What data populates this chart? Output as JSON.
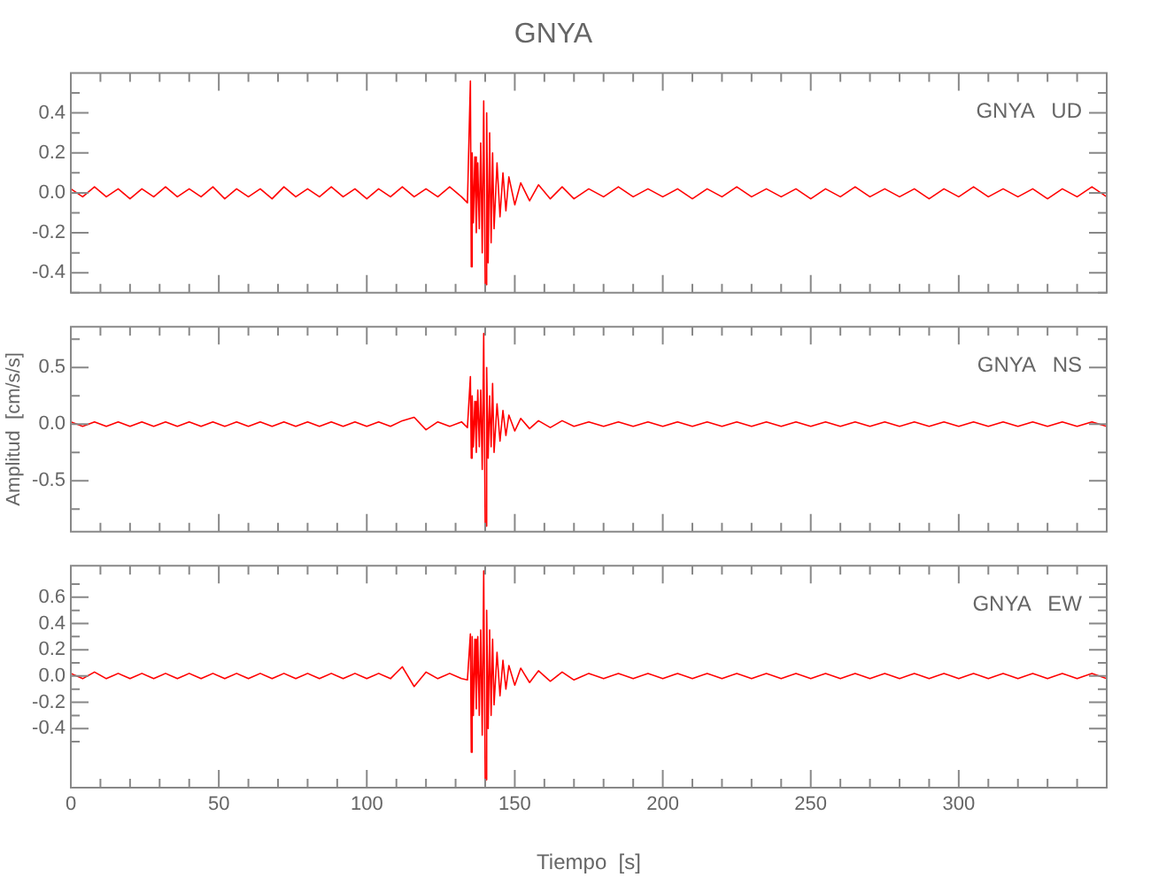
{
  "chart_data": [
    {
      "type": "line",
      "title": "GNYA",
      "tick_labels": "y",
      "marker": "none",
      "xlim": [
        0,
        350
      ],
      "xticks": [
        0,
        {
          "value": 10,
          "label": null
        },
        {
          "value": 20,
          "label": null
        },
        {
          "value": 30,
          "label": null
        },
        {
          "value": 40,
          "label": null
        },
        50,
        {
          "value": 60,
          "label": null
        },
        {
          "value": 70,
          "label": null
        },
        {
          "value": 80,
          "label": null
        },
        {
          "value": 90,
          "label": null
        },
        100,
        {
          "value": 110,
          "label": null
        },
        {
          "value": 120,
          "label": null
        },
        {
          "value": 130,
          "label": null
        },
        {
          "value": 140,
          "label": null
        },
        150,
        {
          "value": 160,
          "label": null
        },
        {
          "value": 170,
          "label": null
        },
        {
          "value": 180,
          "label": null
        },
        {
          "value": 190,
          "label": null
        },
        200,
        {
          "value": 210,
          "label": null
        },
        {
          "value": 220,
          "label": null
        },
        {
          "value": 230,
          "label": null
        },
        {
          "value": 240,
          "label": null
        },
        250,
        {
          "value": 260,
          "label": null
        },
        {
          "value": 270,
          "label": null
        },
        {
          "value": 280,
          "label": null
        },
        {
          "value": 290,
          "label": null
        },
        300,
        {
          "value": 310,
          "label": null
        },
        {
          "value": 320,
          "label": null
        },
        {
          "value": 330,
          "label": null
        },
        {
          "value": 340,
          "label": null
        },
        {
          "value": 350,
          "label": null
        }
      ],
      "ylim": [
        -0.5,
        0.6
      ],
      "yticks": [
        {
          "value": -0.5,
          "label": null
        },
        {
          "value": -0.4,
          "label": "-0.4"
        },
        {
          "value": -0.3,
          "label": null
        },
        {
          "value": -0.2,
          "label": "-0.2"
        },
        {
          "value": -0.1,
          "label": null
        },
        {
          "value": 0,
          "label": "0.0"
        },
        {
          "value": 0.1,
          "label": null
        },
        {
          "value": 0.2,
          "label": "0.2"
        },
        {
          "value": 0.3,
          "label": null
        },
        {
          "value": 0.4,
          "label": "0.4"
        },
        {
          "value": 0.5,
          "label": null
        }
      ],
      "x": [
        0,
        4,
        8,
        12,
        16,
        20,
        24,
        28,
        32,
        36,
        40,
        44,
        48,
        52,
        56,
        60,
        64,
        68,
        72,
        76,
        80,
        84,
        88,
        92,
        96,
        100,
        104,
        108,
        112,
        116,
        120,
        124,
        128,
        132,
        134,
        135,
        135.3,
        135.6,
        136,
        136.5,
        137,
        137.5,
        138,
        138.5,
        139,
        139.5,
        140,
        140.5,
        141,
        141.5,
        142,
        142.5,
        143,
        144,
        145,
        146,
        147,
        148,
        150,
        152,
        155,
        158,
        162,
        166,
        170,
        175,
        180,
        185,
        190,
        195,
        200,
        205,
        210,
        215,
        220,
        225,
        230,
        235,
        240,
        245,
        250,
        255,
        260,
        265,
        270,
        275,
        280,
        285,
        290,
        295,
        300,
        305,
        310,
        315,
        320,
        325,
        330,
        335,
        340,
        345,
        350
      ],
      "series": [
        {
          "name": "GNYA   UD",
          "color": "#ff0000",
          "values": [
            0.02,
            -0.02,
            0.03,
            -0.02,
            0.02,
            -0.03,
            0.02,
            -0.02,
            0.03,
            -0.02,
            0.02,
            -0.02,
            0.03,
            -0.03,
            0.02,
            -0.02,
            0.02,
            -0.03,
            0.03,
            -0.02,
            0.02,
            -0.02,
            0.03,
            -0.02,
            0.02,
            -0.03,
            0.02,
            -0.02,
            0.03,
            -0.02,
            0.02,
            -0.02,
            0.03,
            -0.02,
            -0.05,
            0.56,
            -0.37,
            0.2,
            -0.15,
            0.18,
            -0.2,
            0.15,
            -0.18,
            0.25,
            -0.3,
            0.46,
            -0.46,
            0.4,
            -0.35,
            0.3,
            -0.25,
            0.2,
            -0.18,
            0.15,
            -0.12,
            0.1,
            -0.09,
            0.08,
            -0.06,
            0.05,
            -0.04,
            0.04,
            -0.03,
            0.03,
            -0.03,
            0.02,
            -0.02,
            0.03,
            -0.02,
            0.02,
            -0.02,
            0.02,
            -0.03,
            0.02,
            -0.02,
            0.03,
            -0.02,
            0.02,
            -0.02,
            0.02,
            -0.03,
            0.02,
            -0.02,
            0.03,
            -0.02,
            0.02,
            -0.02,
            0.02,
            -0.03,
            0.02,
            -0.02,
            0.03,
            -0.02,
            0.02,
            -0.02,
            0.02,
            -0.03,
            0.02,
            -0.02,
            0.03,
            -0.02
          ]
        }
      ]
    },
    {
      "type": "line",
      "ylabel": "Amplitud  [cm/s/s]",
      "tick_labels": "y",
      "marker": "none",
      "xlim": [
        0,
        350
      ],
      "xticks": [
        0,
        {
          "value": 10,
          "label": null
        },
        {
          "value": 20,
          "label": null
        },
        {
          "value": 30,
          "label": null
        },
        {
          "value": 40,
          "label": null
        },
        50,
        {
          "value": 60,
          "label": null
        },
        {
          "value": 70,
          "label": null
        },
        {
          "value": 80,
          "label": null
        },
        {
          "value": 90,
          "label": null
        },
        100,
        {
          "value": 110,
          "label": null
        },
        {
          "value": 120,
          "label": null
        },
        {
          "value": 130,
          "label": null
        },
        {
          "value": 140,
          "label": null
        },
        150,
        {
          "value": 160,
          "label": null
        },
        {
          "value": 170,
          "label": null
        },
        {
          "value": 180,
          "label": null
        },
        {
          "value": 190,
          "label": null
        },
        200,
        {
          "value": 210,
          "label": null
        },
        {
          "value": 220,
          "label": null
        },
        {
          "value": 230,
          "label": null
        },
        {
          "value": 240,
          "label": null
        },
        250,
        {
          "value": 260,
          "label": null
        },
        {
          "value": 270,
          "label": null
        },
        {
          "value": 280,
          "label": null
        },
        {
          "value": 290,
          "label": null
        },
        300,
        {
          "value": 310,
          "label": null
        },
        {
          "value": 320,
          "label": null
        },
        {
          "value": 330,
          "label": null
        },
        {
          "value": 340,
          "label": null
        },
        {
          "value": 350,
          "label": null
        }
      ],
      "ylim": [
        -0.95,
        0.86
      ],
      "yticks": [
        {
          "value": -0.75,
          "label": null
        },
        {
          "value": -0.5,
          "label": "-0.5"
        },
        {
          "value": -0.25,
          "label": null
        },
        {
          "value": 0,
          "label": "0.0"
        },
        {
          "value": 0.25,
          "label": null
        },
        {
          "value": 0.5,
          "label": "0.5"
        },
        {
          "value": 0.75,
          "label": null
        }
      ],
      "x": [
        0,
        4,
        8,
        12,
        16,
        20,
        24,
        28,
        32,
        36,
        40,
        44,
        48,
        52,
        56,
        60,
        64,
        68,
        72,
        76,
        80,
        84,
        88,
        92,
        96,
        100,
        104,
        108,
        112,
        116,
        120,
        124,
        128,
        132,
        134,
        135,
        135.3,
        135.6,
        136,
        136.5,
        137,
        137.5,
        138,
        138.5,
        139,
        139.5,
        140,
        140.5,
        141,
        141.5,
        142,
        142.5,
        143,
        144,
        145,
        146,
        147,
        148,
        150,
        152,
        155,
        158,
        162,
        166,
        170,
        175,
        180,
        185,
        190,
        195,
        200,
        205,
        210,
        215,
        220,
        225,
        230,
        235,
        240,
        245,
        250,
        255,
        260,
        265,
        270,
        275,
        280,
        285,
        290,
        295,
        300,
        305,
        310,
        315,
        320,
        325,
        330,
        335,
        340,
        345,
        350
      ],
      "series": [
        {
          "name": "GNYA   NS",
          "color": "#ff0000",
          "values": [
            0.02,
            -0.02,
            0.02,
            -0.02,
            0.02,
            -0.02,
            0.02,
            -0.02,
            0.02,
            -0.02,
            0.02,
            -0.02,
            0.02,
            -0.02,
            0.02,
            -0.02,
            0.02,
            -0.02,
            0.02,
            -0.02,
            0.02,
            -0.02,
            0.02,
            -0.02,
            0.02,
            -0.02,
            0.02,
            -0.02,
            0.03,
            0.06,
            -0.05,
            0.02,
            -0.02,
            0.02,
            -0.03,
            0.42,
            -0.3,
            0.25,
            -0.2,
            0.2,
            -0.25,
            0.3,
            -0.2,
            0.3,
            -0.4,
            0.8,
            -0.9,
            0.5,
            -0.3,
            0.25,
            -0.2,
            0.36,
            -0.25,
            0.18,
            -0.15,
            0.12,
            -0.1,
            0.08,
            -0.06,
            0.05,
            -0.04,
            0.03,
            -0.03,
            0.03,
            -0.02,
            0.02,
            -0.02,
            0.02,
            -0.02,
            0.02,
            -0.02,
            0.02,
            -0.02,
            0.02,
            -0.02,
            0.02,
            -0.02,
            0.02,
            -0.02,
            0.02,
            -0.02,
            0.02,
            -0.02,
            0.02,
            -0.02,
            0.02,
            -0.02,
            0.02,
            -0.02,
            0.02,
            -0.02,
            0.02,
            -0.02,
            0.02,
            -0.02,
            0.02,
            -0.02,
            0.02,
            -0.02,
            0.02,
            -0.02
          ]
        }
      ]
    },
    {
      "type": "line",
      "xlabel": "Tiempo  [s]",
      "marker": "none",
      "xlim": [
        0,
        350
      ],
      "xticks": [
        0,
        {
          "value": 10,
          "label": null
        },
        {
          "value": 20,
          "label": null
        },
        {
          "value": 30,
          "label": null
        },
        {
          "value": 40,
          "label": null
        },
        50,
        {
          "value": 60,
          "label": null
        },
        {
          "value": 70,
          "label": null
        },
        {
          "value": 80,
          "label": null
        },
        {
          "value": 90,
          "label": null
        },
        100,
        {
          "value": 110,
          "label": null
        },
        {
          "value": 120,
          "label": null
        },
        {
          "value": 130,
          "label": null
        },
        {
          "value": 140,
          "label": null
        },
        150,
        {
          "value": 160,
          "label": null
        },
        {
          "value": 170,
          "label": null
        },
        {
          "value": 180,
          "label": null
        },
        {
          "value": 190,
          "label": null
        },
        200,
        {
          "value": 210,
          "label": null
        },
        {
          "value": 220,
          "label": null
        },
        {
          "value": 230,
          "label": null
        },
        {
          "value": 240,
          "label": null
        },
        250,
        {
          "value": 260,
          "label": null
        },
        {
          "value": 270,
          "label": null
        },
        {
          "value": 280,
          "label": null
        },
        {
          "value": 290,
          "label": null
        },
        300,
        {
          "value": 310,
          "label": null
        },
        {
          "value": 320,
          "label": null
        },
        {
          "value": 330,
          "label": null
        },
        {
          "value": 340,
          "label": null
        },
        {
          "value": 350,
          "label": null
        }
      ],
      "ylim": [
        -0.85,
        0.84
      ],
      "yticks": [
        {
          "value": -0.5,
          "label": null
        },
        {
          "value": -0.4,
          "label": "-0.4"
        },
        {
          "value": -0.3,
          "label": null
        },
        {
          "value": -0.2,
          "label": "-0.2"
        },
        {
          "value": -0.1,
          "label": null
        },
        {
          "value": 0,
          "label": "0.0"
        },
        {
          "value": 0.1,
          "label": null
        },
        {
          "value": 0.2,
          "label": "0.2"
        },
        {
          "value": 0.3,
          "label": null
        },
        {
          "value": 0.4,
          "label": "0.4"
        },
        {
          "value": 0.5,
          "label": null
        },
        {
          "value": 0.6,
          "label": "0.6"
        },
        {
          "value": 0.7,
          "label": null
        }
      ],
      "x": [
        0,
        4,
        8,
        12,
        16,
        20,
        24,
        28,
        32,
        36,
        40,
        44,
        48,
        52,
        56,
        60,
        64,
        68,
        72,
        76,
        80,
        84,
        88,
        92,
        96,
        100,
        104,
        108,
        112,
        116,
        120,
        124,
        128,
        132,
        134,
        135,
        135.3,
        135.6,
        136,
        136.5,
        137,
        137.5,
        138,
        138.5,
        139,
        139.5,
        140,
        140.5,
        141,
        141.5,
        142,
        142.5,
        143,
        144,
        145,
        146,
        147,
        148,
        150,
        152,
        155,
        158,
        162,
        166,
        170,
        175,
        180,
        185,
        190,
        195,
        200,
        205,
        210,
        215,
        220,
        225,
        230,
        235,
        240,
        245,
        250,
        255,
        260,
        265,
        270,
        275,
        280,
        285,
        290,
        295,
        300,
        305,
        310,
        315,
        320,
        325,
        330,
        335,
        340,
        345,
        350
      ],
      "series": [
        {
          "name": "GNYA   EW",
          "color": "#ff0000",
          "values": [
            0.02,
            -0.02,
            0.03,
            -0.02,
            0.02,
            -0.02,
            0.02,
            -0.02,
            0.02,
            -0.02,
            0.02,
            -0.02,
            0.02,
            -0.02,
            0.02,
            -0.02,
            0.02,
            -0.02,
            0.02,
            -0.02,
            0.02,
            -0.02,
            0.02,
            -0.02,
            0.02,
            -0.02,
            0.02,
            -0.02,
            0.07,
            -0.08,
            0.03,
            -0.02,
            0.02,
            -0.02,
            -0.03,
            0.32,
            -0.58,
            0.3,
            -0.3,
            0.28,
            -0.25,
            0.3,
            -0.3,
            0.35,
            -0.45,
            0.8,
            -0.79,
            0.5,
            -0.4,
            0.35,
            -0.3,
            0.28,
            -0.22,
            0.18,
            -0.15,
            0.12,
            -0.1,
            0.08,
            -0.07,
            0.06,
            -0.05,
            0.04,
            -0.04,
            0.03,
            -0.03,
            0.02,
            -0.02,
            0.02,
            -0.02,
            0.02,
            -0.02,
            0.02,
            -0.02,
            0.02,
            -0.02,
            0.02,
            -0.02,
            0.02,
            -0.02,
            0.02,
            -0.02,
            0.02,
            -0.02,
            0.02,
            -0.02,
            0.02,
            -0.02,
            0.02,
            -0.02,
            0.02,
            -0.02,
            0.02,
            -0.02,
            0.02,
            -0.02,
            0.02,
            -0.02,
            0.02,
            -0.02,
            0.02,
            -0.02
          ]
        }
      ]
    }
  ]
}
